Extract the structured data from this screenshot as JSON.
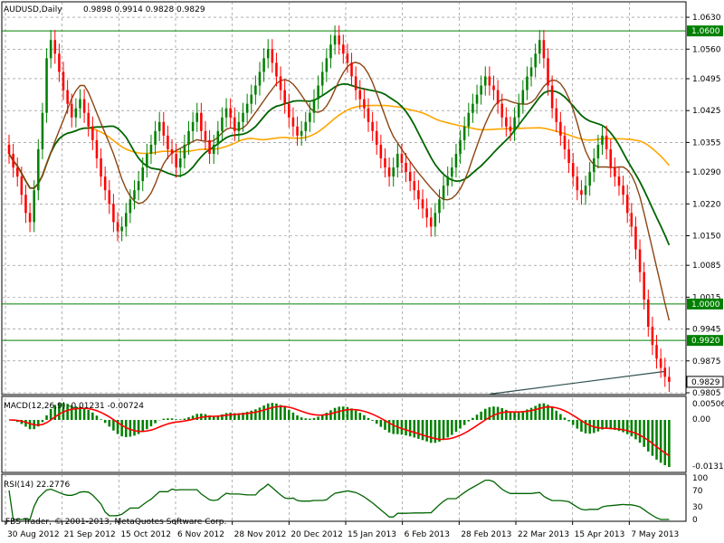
{
  "header": {
    "symbol": "AUDUSD,Daily",
    "ohlc": "0.9898 0.9914 0.9828 0.9829"
  },
  "footer": {
    "copyright": "FBS Trader, © 2001-2013, MetaQuotes Software Corp."
  },
  "colors": {
    "bull": "#008000",
    "bear": "#ff0000",
    "ma_green": "#006400",
    "ma_brown": "#8b4513",
    "ma_orange": "#ffa500",
    "grid": "#808080",
    "trendline": "#2f4f4f"
  },
  "chart_data": {
    "type": "candlestick",
    "symbol": "AUDUSD",
    "timeframe": "Daily",
    "y_ticks": [
      "1.0630",
      "1.0560",
      "1.0495",
      "1.0425",
      "1.0355",
      "1.0290",
      "1.0220",
      "1.0150",
      "1.0085",
      "1.0015",
      "0.9945",
      "0.9875",
      "0.9805"
    ],
    "ylim": [
      0.9805,
      1.066
    ],
    "x_ticks": [
      "30 Aug 2012",
      "21 Sep 2012",
      "15 Oct 2012",
      "6 Nov 2012",
      "28 Nov 2012",
      "20 Dec 2012",
      "15 Jan 2013",
      "6 Feb 2013",
      "28 Feb 2013",
      "22 Mar 2013",
      "15 Apr 2013",
      "7 May 2013"
    ],
    "horizontal_levels": [
      {
        "label": "1.0600",
        "value": 1.06
      },
      {
        "label": "1.0000",
        "value": 1.0
      },
      {
        "label": "0.9920",
        "value": 0.992
      }
    ],
    "current_price": {
      "label": "0.9829",
      "value": 0.9829
    },
    "trendline": {
      "start": {
        "x_index": 115,
        "value": 0.9802
      },
      "end": {
        "x_index": 157,
        "value": 0.9852
      }
    },
    "close": [
      1.033,
      1.03,
      1.028,
      1.024,
      1.02,
      1.018,
      1.025,
      1.034,
      1.042,
      1.054,
      1.058,
      1.055,
      1.051,
      1.047,
      1.044,
      1.041,
      1.043,
      1.045,
      1.042,
      1.039,
      1.036,
      1.032,
      1.028,
      1.025,
      1.022,
      1.018,
      1.016,
      1.017,
      1.02,
      1.023,
      1.025,
      1.027,
      1.03,
      1.033,
      1.035,
      1.038,
      1.04,
      1.037,
      1.034,
      1.033,
      1.03,
      1.032,
      1.035,
      1.038,
      1.04,
      1.042,
      1.038,
      1.036,
      1.033,
      1.035,
      1.038,
      1.041,
      1.043,
      1.041,
      1.038,
      1.04,
      1.042,
      1.044,
      1.046,
      1.048,
      1.051,
      1.054,
      1.056,
      1.053,
      1.05,
      1.047,
      1.044,
      1.041,
      1.039,
      1.037,
      1.038,
      1.04,
      1.042,
      1.045,
      1.048,
      1.051,
      1.054,
      1.057,
      1.059,
      1.057,
      1.055,
      1.053,
      1.05,
      1.047,
      1.045,
      1.043,
      1.04,
      1.038,
      1.035,
      1.032,
      1.03,
      1.028,
      1.03,
      1.033,
      1.031,
      1.029,
      1.027,
      1.025,
      1.023,
      1.021,
      1.019,
      1.017,
      1.02,
      1.023,
      1.026,
      1.028,
      1.03,
      1.033,
      1.036,
      1.039,
      1.042,
      1.044,
      1.046,
      1.048,
      1.05,
      1.048,
      1.047,
      1.044,
      1.041,
      1.039,
      1.038,
      1.041,
      1.044,
      1.047,
      1.05,
      1.052,
      1.055,
      1.058,
      1.054,
      1.048,
      1.043,
      1.04,
      1.037,
      1.034,
      1.031,
      1.028,
      1.025,
      1.024,
      1.026,
      1.029,
      1.032,
      1.035,
      1.037,
      1.034,
      1.03,
      1.028,
      1.026,
      1.024,
      1.02,
      1.017,
      1.012,
      1.007,
      1.001,
      0.995,
      0.991,
      0.988,
      0.986,
      0.984,
      0.9829
    ],
    "indicators": {
      "macd": {
        "label": "MACD(12,26,9) -0.01231 -0.00724",
        "ticks": [
          "0.00506",
          "0.00",
          "-0.01314"
        ]
      },
      "rsi": {
        "label": "RSI(14) 22.2776",
        "ticks": [
          "100",
          "70",
          "30",
          "0"
        ]
      }
    }
  }
}
